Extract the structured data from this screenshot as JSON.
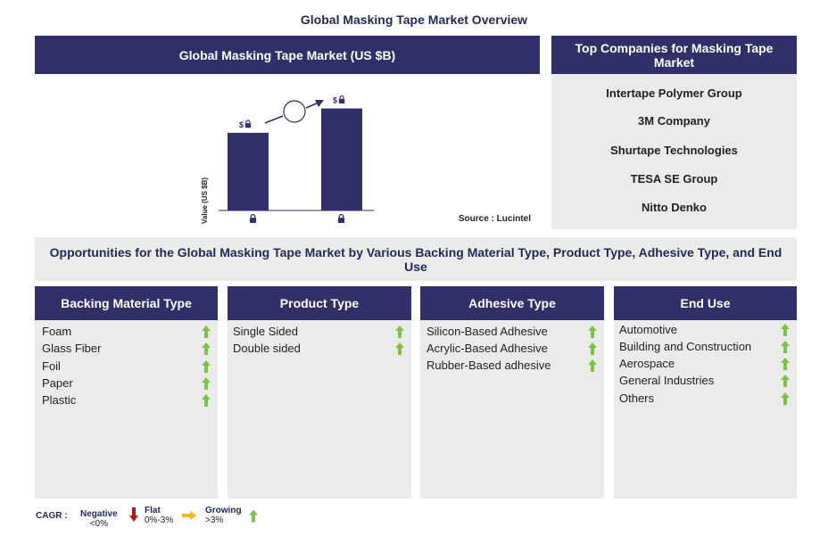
{
  "page_title": "Global Masking Tape Market Overview",
  "market_panel": {
    "title": "Global Masking Tape Market (US $B)",
    "y_axis_label": "Value (US $B)",
    "bar_label": "$",
    "source": "Source : Lucintel"
  },
  "chart_data": {
    "type": "bar",
    "categories": [
      "",
      ""
    ],
    "values": [
      0.67,
      0.88
    ],
    "note": "values hidden (locked); relative heights only"
  },
  "companies_panel": {
    "title": "Top Companies for Masking Tape Market",
    "companies": [
      "Intertape Polymer Group",
      "3M Company",
      "Shurtape Technologies",
      "TESA SE Group",
      "Nitto Denko"
    ]
  },
  "opportunities": {
    "title": "Opportunities for the Global Masking Tape Market by Various Backing Material Type, Product Type, Adhesive Type, and End Use"
  },
  "segments": [
    {
      "title": "Backing Material Type",
      "items": [
        "Foam",
        "Glass Fiber",
        "Foil",
        "Paper",
        "Plastic"
      ]
    },
    {
      "title": "Product Type",
      "items": [
        "Single Sided",
        "Double sided"
      ]
    },
    {
      "title": "Adhesive Type",
      "items": [
        "Silicon-Based Adhesive",
        "Acrylic-Based Adhesive",
        "Rubber-Based adhesive"
      ]
    },
    {
      "title": "End Use",
      "items": [
        "Automotive",
        "Building and Construction",
        "Aerospace",
        "General Industries",
        "Others"
      ]
    }
  ],
  "legend": {
    "label": "CAGR :",
    "negative": {
      "title": "Negative",
      "range": "<0%"
    },
    "flat": {
      "title": "Flat",
      "range": "0%-3%"
    },
    "growing": {
      "title": "Growing",
      "range": ">3%"
    }
  },
  "colors": {
    "navy": "#2e3067",
    "panel_gray": "#ebebeb",
    "growing_green": "#7dc242",
    "negative_red": "#c0141b",
    "flat_yellow": "#f5b800"
  },
  "icons": {
    "lock": "lock-icon",
    "up": "up-arrow-icon",
    "down": "down-arrow-icon",
    "right": "right-arrow-icon"
  }
}
